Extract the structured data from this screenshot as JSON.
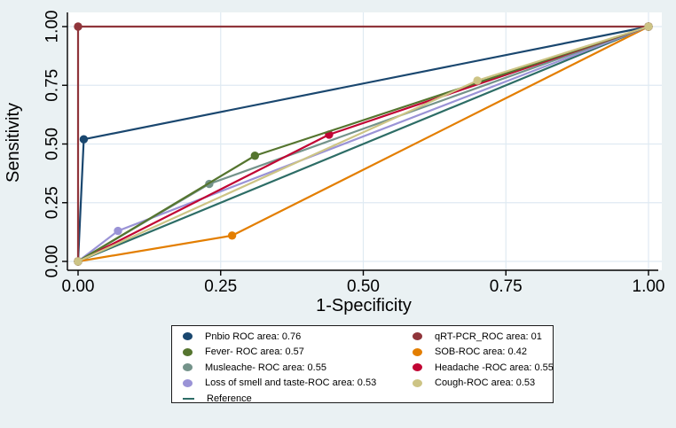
{
  "figure": {
    "background": "#eaf1f3",
    "plot_bg": "#ffffff",
    "grid_color": "#dfeaf2",
    "axis_color": "#000000",
    "legend_border": "#1a1a1a"
  },
  "chart_data": {
    "type": "line",
    "title": "",
    "xlabel": "1-Specificity",
    "ylabel": "Sensitivity",
    "xlim": [
      0,
      1
    ],
    "ylim": [
      0,
      1
    ],
    "xticks": [
      "0.00",
      "0.25",
      "0.50",
      "0.75",
      "1.00"
    ],
    "yticks": [
      "0.00",
      "0.25",
      "0.50",
      "0.75",
      "1.00"
    ],
    "grid": true,
    "legend_position": "bottom",
    "series": [
      {
        "name": "pnbio",
        "label": "Pnbio ROC area: 0.76",
        "color": "#1a476f",
        "auc": "0.76",
        "points": [
          [
            0,
            0
          ],
          [
            0.01,
            0.52
          ],
          [
            1,
            1
          ]
        ],
        "markers": true
      },
      {
        "name": "qrt_pcr",
        "label": "qRT-PCR_ROC area: 01",
        "color": "#90353b",
        "auc": "01",
        "points": [
          [
            0,
            0
          ],
          [
            0,
            1
          ],
          [
            1,
            1
          ]
        ],
        "markers": true
      },
      {
        "name": "fever",
        "label": "Fever- ROC area: 0.57",
        "color": "#55752f",
        "auc": "0.57",
        "points": [
          [
            0,
            0
          ],
          [
            0.31,
            0.45
          ],
          [
            1,
            1
          ]
        ],
        "markers": true
      },
      {
        "name": "sob",
        "label": "SOB-ROC area: 0.42",
        "color": "#e37e00",
        "auc": "0.42",
        "points": [
          [
            0,
            0
          ],
          [
            0.27,
            0.11
          ],
          [
            1,
            1
          ]
        ],
        "markers": true
      },
      {
        "name": "musleache",
        "label": "Musleache- ROC area: 0.55",
        "color": "#74938a",
        "auc": "0.55",
        "points": [
          [
            0,
            0
          ],
          [
            0.23,
            0.33
          ],
          [
            1,
            1
          ]
        ],
        "markers": true
      },
      {
        "name": "headache",
        "label": "Headache -ROC area: 0.55",
        "color": "#c10534",
        "auc": "0.55",
        "points": [
          [
            0,
            0
          ],
          [
            0.44,
            0.54
          ],
          [
            1,
            1
          ]
        ],
        "markers": true
      },
      {
        "name": "loss_smell_taste",
        "label": "Loss of smell and taste-ROC area: 0.53",
        "color": "#9a93d6",
        "auc": "0.53",
        "points": [
          [
            0,
            0
          ],
          [
            0.07,
            0.13
          ],
          [
            1,
            1
          ]
        ],
        "markers": true
      },
      {
        "name": "cough",
        "label": "Cough-ROC area: 0.53",
        "color": "#cdc485",
        "auc": "0.53",
        "points": [
          [
            0,
            0
          ],
          [
            0.7,
            0.77
          ],
          [
            1,
            1
          ]
        ],
        "markers": true
      },
      {
        "name": "reference",
        "label": "Reference",
        "color": "#2d6d66",
        "auc": "",
        "points": [
          [
            0,
            0
          ],
          [
            1,
            1
          ]
        ],
        "markers": false
      }
    ],
    "draw_order": [
      "reference",
      "sob",
      "loss_smell_taste",
      "musleache",
      "headache",
      "fever",
      "pnbio",
      "qrt_pcr",
      "cough"
    ],
    "legend_columns": {
      "left": [
        "pnbio",
        "fever",
        "musleache",
        "loss_smell_taste",
        "reference"
      ],
      "right": [
        "qrt_pcr",
        "sob",
        "headache",
        "cough"
      ]
    }
  }
}
